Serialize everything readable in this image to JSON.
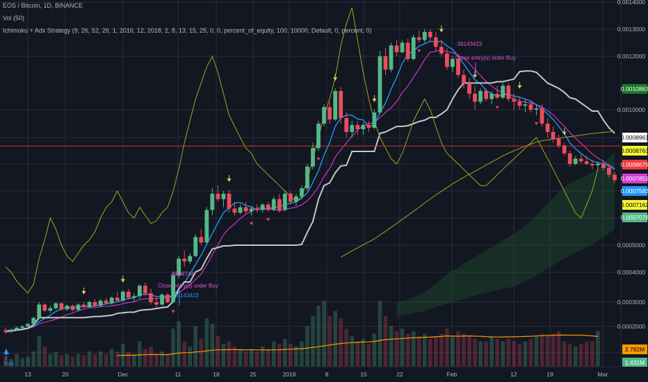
{
  "header": {
    "symbol_line": "EOS / Bitcoin, 1D, BINANCE",
    "volume_line": "Vol (50)",
    "strategy_line": "Ichimoku + Adx Strategy (9, 26, 52, 26, 1, 2016, 12, 2018, 2, 8, 13, 15, 25, 0, 0, percent_of_equity, 100, 10000, Default, 0, percent, 0)"
  },
  "colors": {
    "background": "#131722",
    "grid": "#2a2e39",
    "bull": "#53b987",
    "bear": "#eb4d5c",
    "tenkan": "#2196f3",
    "kijun": "#c8c8c8",
    "magenta": "#d63bd6",
    "adx": "#a5a51f",
    "cloud": "#1d5a2a",
    "volume_ma": "#ff9800",
    "hline": "#c33"
  },
  "annotations": {
    "trade_top_id": "-38143423",
    "trade_top_text": "Close entry(s) order Buy",
    "trade_mid_id": "-8808744",
    "trade_mid_text": "Close entry(s) order Buy",
    "trade_mid_id2": "38143423",
    "buy_label": "Buy"
  },
  "chart_data": {
    "type": "candlestick",
    "title": "EOS / Bitcoin, 1D, BINANCE",
    "y_axis": {
      "min": 0.0001,
      "max": 0.0014,
      "position": "right",
      "ticks": [
        "0.0014000",
        "0.0013000",
        "0.0012000",
        "0.0010000",
        "0.0005000",
        "0.0004000",
        "0.0003000",
        "0.0002000"
      ]
    },
    "x_axis": {
      "tick_labels": [
        "13",
        "20",
        "Dec",
        "11",
        "18",
        "25",
        "2018",
        "8",
        "15",
        "22",
        "Feb",
        "12",
        "19",
        "Mar"
      ]
    },
    "price_badges": [
      {
        "label": "0.0010863",
        "value": 0.0010863,
        "bg": "#1b7a2b",
        "fg": "#ffffff"
      },
      {
        "label": "0.0008961",
        "value": 0.0008961,
        "bg": "#ffffff",
        "fg": "#000000"
      },
      {
        "label": "0.0008763",
        "value": 0.0008763,
        "bg": "#f5f535",
        "fg": "#000000"
      },
      {
        "label": "0.0008679",
        "value": 0.0008679,
        "bg": "#ef3b3b",
        "fg": "#ffffff"
      },
      {
        "label": "0.0007851",
        "value": 0.0007851,
        "bg": "#d63bd6",
        "fg": "#ffffff"
      },
      {
        "label": "0.0007583",
        "value": 0.0007583,
        "bg": "#2196f3",
        "fg": "#ffffff"
      },
      {
        "label": "0.0007162",
        "value": 0.0007162,
        "bg": "#f5f535",
        "fg": "#000000"
      },
      {
        "label": "0.0007078",
        "value": 0.0007078,
        "bg": "#53b987",
        "fg": "#ffffff"
      }
    ],
    "volume_badges": [
      {
        "label": "2.782M",
        "bg": "#ff9800",
        "fg": "#000000"
      },
      {
        "label": "1.431M",
        "bg": "#53b987",
        "fg": "#ffffff"
      }
    ],
    "candles": [
      {
        "o": 0.000185,
        "h": 0.000195,
        "l": 0.000172,
        "c": 0.00018
      },
      {
        "o": 0.00018,
        "h": 0.000192,
        "l": 0.000175,
        "c": 0.000188
      },
      {
        "o": 0.000188,
        "h": 0.0002,
        "l": 0.000183,
        "c": 0.000195
      },
      {
        "o": 0.000195,
        "h": 0.000205,
        "l": 0.00019,
        "c": 0.0002
      },
      {
        "o": 0.0002,
        "h": 0.000215,
        "l": 0.000195,
        "c": 0.00021
      },
      {
        "o": 0.00021,
        "h": 0.00024,
        "l": 0.000205,
        "c": 0.000235
      },
      {
        "o": 0.000235,
        "h": 0.0003,
        "l": 0.000228,
        "c": 0.00029
      },
      {
        "o": 0.00029,
        "h": 0.000295,
        "l": 0.00026,
        "c": 0.000265
      },
      {
        "o": 0.000265,
        "h": 0.000285,
        "l": 0.000255,
        "c": 0.000275
      },
      {
        "o": 0.000275,
        "h": 0.0003,
        "l": 0.00027,
        "c": 0.000295
      },
      {
        "o": 0.000295,
        "h": 0.0003,
        "l": 0.000265,
        "c": 0.00027
      },
      {
        "o": 0.00027,
        "h": 0.00029,
        "l": 0.000265,
        "c": 0.000285
      },
      {
        "o": 0.000285,
        "h": 0.00029,
        "l": 0.000262,
        "c": 0.000268
      },
      {
        "o": 0.000268,
        "h": 0.000295,
        "l": 0.000262,
        "c": 0.00029
      },
      {
        "o": 0.00029,
        "h": 0.0003,
        "l": 0.000275,
        "c": 0.00028
      },
      {
        "o": 0.00028,
        "h": 0.000305,
        "l": 0.000275,
        "c": 0.0003
      },
      {
        "o": 0.0003,
        "h": 0.00031,
        "l": 0.00028,
        "c": 0.000285
      },
      {
        "o": 0.000285,
        "h": 0.00031,
        "l": 0.000282,
        "c": 0.000305
      },
      {
        "o": 0.000305,
        "h": 0.000315,
        "l": 0.00029,
        "c": 0.000295
      },
      {
        "o": 0.000295,
        "h": 0.00032,
        "l": 0.00029,
        "c": 0.000315
      },
      {
        "o": 0.000315,
        "h": 0.000335,
        "l": 0.0003,
        "c": 0.000305
      },
      {
        "o": 0.000305,
        "h": 0.00034,
        "l": 0.0003,
        "c": 0.000335
      },
      {
        "o": 0.000335,
        "h": 0.000345,
        "l": 0.00031,
        "c": 0.000315
      },
      {
        "o": 0.000315,
        "h": 0.00033,
        "l": 0.0003,
        "c": 0.00032
      },
      {
        "o": 0.00032,
        "h": 0.00036,
        "l": 0.00031,
        "c": 0.000355
      },
      {
        "o": 0.000355,
        "h": 0.000365,
        "l": 0.00032,
        "c": 0.00033
      },
      {
        "o": 0.00033,
        "h": 0.000345,
        "l": 0.00029,
        "c": 0.0003
      },
      {
        "o": 0.0003,
        "h": 0.00032,
        "l": 0.00028,
        "c": 0.00029
      },
      {
        "o": 0.00029,
        "h": 0.00033,
        "l": 0.000285,
        "c": 0.000325
      },
      {
        "o": 0.000325,
        "h": 0.00033,
        "l": 0.000295,
        "c": 0.0003
      },
      {
        "o": 0.0003,
        "h": 0.0004,
        "l": 0.000295,
        "c": 0.00039
      },
      {
        "o": 0.00039,
        "h": 0.00046,
        "l": 0.00038,
        "c": 0.00045
      },
      {
        "o": 0.00045,
        "h": 0.00048,
        "l": 0.00042,
        "c": 0.00044
      },
      {
        "o": 0.00044,
        "h": 0.00047,
        "l": 0.00043,
        "c": 0.00046
      },
      {
        "o": 0.00046,
        "h": 0.00054,
        "l": 0.000455,
        "c": 0.00053
      },
      {
        "o": 0.00053,
        "h": 0.00056,
        "l": 0.0005,
        "c": 0.00051
      },
      {
        "o": 0.00051,
        "h": 0.00064,
        "l": 0.000505,
        "c": 0.00063
      },
      {
        "o": 0.00063,
        "h": 0.00071,
        "l": 0.00061,
        "c": 0.00069
      },
      {
        "o": 0.00069,
        "h": 0.00072,
        "l": 0.00066,
        "c": 0.00067
      },
      {
        "o": 0.00067,
        "h": 0.0007,
        "l": 0.00064,
        "c": 0.00069
      },
      {
        "o": 0.00069,
        "h": 0.000705,
        "l": 0.00062,
        "c": 0.000635
      },
      {
        "o": 0.000635,
        "h": 0.00066,
        "l": 0.00061,
        "c": 0.00062
      },
      {
        "o": 0.00062,
        "h": 0.00065,
        "l": 0.000615,
        "c": 0.00064
      },
      {
        "o": 0.00064,
        "h": 0.00066,
        "l": 0.000615,
        "c": 0.000625
      },
      {
        "o": 0.000625,
        "h": 0.000645,
        "l": 0.00061,
        "c": 0.000635
      },
      {
        "o": 0.000635,
        "h": 0.00065,
        "l": 0.00062,
        "c": 0.00063
      },
      {
        "o": 0.00063,
        "h": 0.000655,
        "l": 0.00062,
        "c": 0.00065
      },
      {
        "o": 0.00065,
        "h": 0.00066,
        "l": 0.000625,
        "c": 0.00063
      },
      {
        "o": 0.00063,
        "h": 0.00068,
        "l": 0.000625,
        "c": 0.00067
      },
      {
        "o": 0.00067,
        "h": 0.00069,
        "l": 0.00062,
        "c": 0.00063
      },
      {
        "o": 0.00063,
        "h": 0.0007,
        "l": 0.000625,
        "c": 0.00069
      },
      {
        "o": 0.00069,
        "h": 0.0007,
        "l": 0.00065,
        "c": 0.00066
      },
      {
        "o": 0.00066,
        "h": 0.00069,
        "l": 0.000645,
        "c": 0.00068
      },
      {
        "o": 0.00068,
        "h": 0.00072,
        "l": 0.00067,
        "c": 0.00071
      },
      {
        "o": 0.00071,
        "h": 0.0008,
        "l": 0.0007,
        "c": 0.00079
      },
      {
        "o": 0.00079,
        "h": 0.00088,
        "l": 0.00078,
        "c": 0.00086
      },
      {
        "o": 0.00086,
        "h": 0.00096,
        "l": 0.00085,
        "c": 0.00095
      },
      {
        "o": 0.00095,
        "h": 0.00102,
        "l": 0.00094,
        "c": 0.00101
      },
      {
        "o": 0.00101,
        "h": 0.00103,
        "l": 0.00095,
        "c": 0.000965
      },
      {
        "o": 0.000965,
        "h": 0.00108,
        "l": 0.00096,
        "c": 0.00107
      },
      {
        "o": 0.00107,
        "h": 0.001085,
        "l": 0.00095,
        "c": 0.00097
      },
      {
        "o": 0.00097,
        "h": 0.00099,
        "l": 0.0009,
        "c": 0.00092
      },
      {
        "o": 0.00092,
        "h": 0.00096,
        "l": 0.0009,
        "c": 0.000945
      },
      {
        "o": 0.000945,
        "h": 0.00096,
        "l": 0.00091,
        "c": 0.00093
      },
      {
        "o": 0.00093,
        "h": 0.000955,
        "l": 0.00091,
        "c": 0.000945
      },
      {
        "o": 0.000945,
        "h": 0.00096,
        "l": 0.00092,
        "c": 0.000935
      },
      {
        "o": 0.000935,
        "h": 0.001,
        "l": 0.00093,
        "c": 0.00099
      },
      {
        "o": 0.00099,
        "h": 0.00122,
        "l": 0.000985,
        "c": 0.0012
      },
      {
        "o": 0.0012,
        "h": 0.00123,
        "l": 0.00113,
        "c": 0.00115
      },
      {
        "o": 0.00115,
        "h": 0.00125,
        "l": 0.00114,
        "c": 0.00124
      },
      {
        "o": 0.00124,
        "h": 0.00126,
        "l": 0.0012,
        "c": 0.001215
      },
      {
        "o": 0.001215,
        "h": 0.00126,
        "l": 0.00121,
        "c": 0.00125
      },
      {
        "o": 0.00125,
        "h": 0.001265,
        "l": 0.00118,
        "c": 0.00119
      },
      {
        "o": 0.00119,
        "h": 0.00128,
        "l": 0.001185,
        "c": 0.00127
      },
      {
        "o": 0.00127,
        "h": 0.001295,
        "l": 0.00125,
        "c": 0.00126
      },
      {
        "o": 0.00126,
        "h": 0.0013,
        "l": 0.00125,
        "c": 0.00129
      },
      {
        "o": 0.00129,
        "h": 0.0013,
        "l": 0.001255,
        "c": 0.00127
      },
      {
        "o": 0.00127,
        "h": 0.00129,
        "l": 0.00122,
        "c": 0.001235
      },
      {
        "o": 0.001235,
        "h": 0.00126,
        "l": 0.0012,
        "c": 0.00121
      },
      {
        "o": 0.00121,
        "h": 0.00123,
        "l": 0.00115,
        "c": 0.00116
      },
      {
        "o": 0.00116,
        "h": 0.0012,
        "l": 0.00114,
        "c": 0.00119
      },
      {
        "o": 0.00119,
        "h": 0.00121,
        "l": 0.00112,
        "c": 0.00113
      },
      {
        "o": 0.00113,
        "h": 0.00115,
        "l": 0.00108,
        "c": 0.0011
      },
      {
        "o": 0.0011,
        "h": 0.00112,
        "l": 0.00104,
        "c": 0.00106
      },
      {
        "o": 0.00106,
        "h": 0.00109,
        "l": 0.001,
        "c": 0.00103
      },
      {
        "o": 0.00103,
        "h": 0.00108,
        "l": 0.00102,
        "c": 0.00107
      },
      {
        "o": 0.00107,
        "h": 0.00108,
        "l": 0.00103,
        "c": 0.00104
      },
      {
        "o": 0.00104,
        "h": 0.00107,
        "l": 0.00102,
        "c": 0.00106
      },
      {
        "o": 0.00106,
        "h": 0.00109,
        "l": 0.00104,
        "c": 0.001045
      },
      {
        "o": 0.001045,
        "h": 0.0011,
        "l": 0.00104,
        "c": 0.00109
      },
      {
        "o": 0.00109,
        "h": 0.0011,
        "l": 0.00103,
        "c": 0.00104
      },
      {
        "o": 0.00104,
        "h": 0.00106,
        "l": 0.001,
        "c": 0.00103
      },
      {
        "o": 0.00103,
        "h": 0.00105,
        "l": 0.001,
        "c": 0.001015
      },
      {
        "o": 0.001015,
        "h": 0.00104,
        "l": 0.00099,
        "c": 0.00102
      },
      {
        "o": 0.00102,
        "h": 0.001035,
        "l": 0.00099,
        "c": 0.001
      },
      {
        "o": 0.001,
        "h": 0.00102,
        "l": 0.00098,
        "c": 0.001005
      },
      {
        "o": 0.001005,
        "h": 0.00102,
        "l": 0.00094,
        "c": 0.00095
      },
      {
        "o": 0.00095,
        "h": 0.00097,
        "l": 0.0009,
        "c": 0.00092
      },
      {
        "o": 0.00092,
        "h": 0.00094,
        "l": 0.00088,
        "c": 0.000895
      },
      {
        "o": 0.000895,
        "h": 0.00091,
        "l": 0.00086,
        "c": 0.00087
      },
      {
        "o": 0.00087,
        "h": 0.00088,
        "l": 0.00083,
        "c": 0.00084
      },
      {
        "o": 0.00084,
        "h": 0.00085,
        "l": 0.00079,
        "c": 0.0008
      },
      {
        "o": 0.0008,
        "h": 0.00083,
        "l": 0.000795,
        "c": 0.00082
      },
      {
        "o": 0.00082,
        "h": 0.000835,
        "l": 0.0008,
        "c": 0.00081
      },
      {
        "o": 0.00081,
        "h": 0.00083,
        "l": 0.000795,
        "c": 0.0008
      },
      {
        "o": 0.0008,
        "h": 0.000815,
        "l": 0.00078,
        "c": 0.000795
      },
      {
        "o": 0.000795,
        "h": 0.00081,
        "l": 0.00078,
        "c": 0.0008
      },
      {
        "o": 0.0008,
        "h": 0.000815,
        "l": 0.000775,
        "c": 0.000785
      },
      {
        "o": 0.000785,
        "h": 0.0008,
        "l": 0.00075,
        "c": 0.00076
      },
      {
        "o": 0.00076,
        "h": 0.00077,
        "l": 0.00073,
        "c": 0.00074
      }
    ],
    "volume": [
      0.4,
      0.3,
      0.5,
      0.35,
      0.4,
      0.6,
      1.2,
      0.8,
      0.5,
      0.6,
      0.45,
      0.5,
      0.4,
      0.5,
      0.45,
      0.6,
      0.5,
      0.6,
      0.5,
      0.7,
      0.6,
      0.9,
      0.6,
      0.5,
      1.0,
      0.7,
      0.8,
      0.5,
      0.6,
      0.5,
      1.5,
      1.8,
      1.0,
      0.8,
      1.6,
      1.1,
      1.9,
      1.7,
      1.2,
      0.9,
      1.0,
      0.8,
      0.7,
      0.6,
      0.7,
      0.6,
      0.8,
      0.7,
      1.0,
      0.9,
      1.1,
      0.9,
      0.8,
      1.0,
      1.6,
      2.0,
      2.4,
      2.6,
      2.0,
      2.2,
      1.9,
      1.5,
      1.2,
      1.0,
      1.1,
      0.9,
      1.3,
      2.6,
      2.0,
      1.6,
      1.4,
      1.5,
      1.3,
      1.4,
      1.2,
      1.3,
      1.1,
      1.2,
      1.3,
      1.5,
      1.2,
      1.4,
      1.3,
      1.2,
      1.1,
      1.0,
      1.0,
      1.2,
      1.1,
      1.0,
      1.1,
      1.0,
      0.9,
      1.0,
      1.1,
      1.2,
      1.3,
      1.2,
      1.3,
      1.4,
      1.0,
      0.9,
      0.8,
      0.9,
      1.0,
      1.0,
      1.4
    ]
  }
}
